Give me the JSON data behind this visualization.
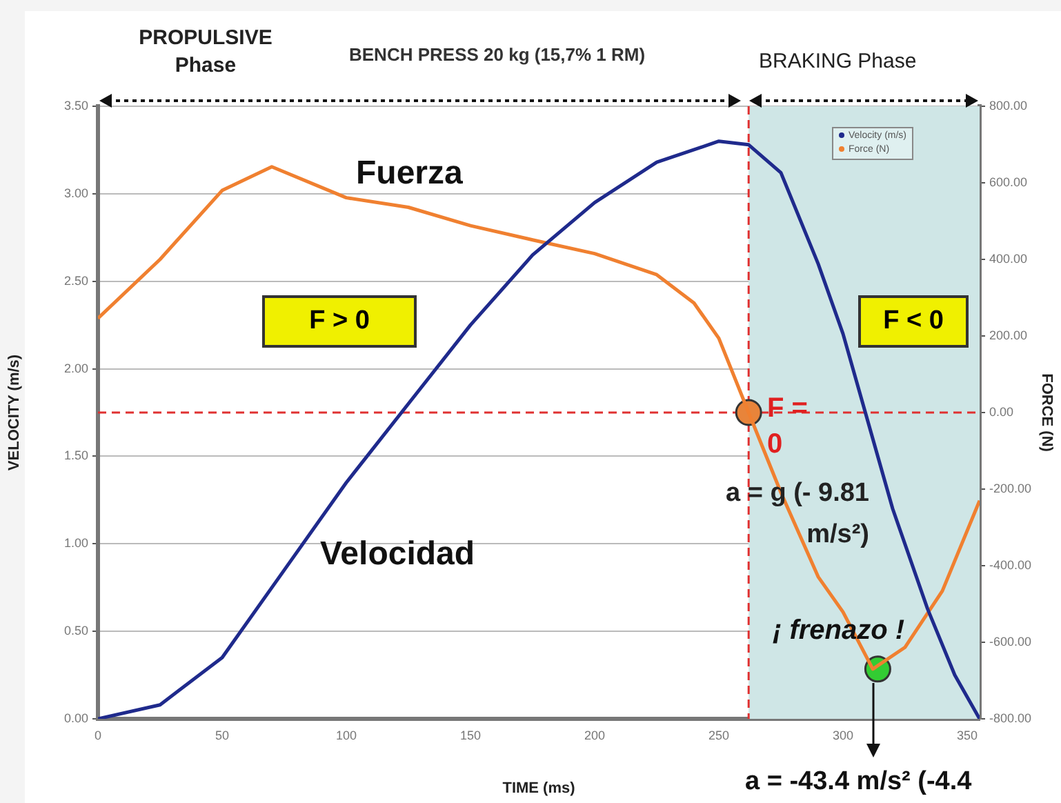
{
  "chart_data": {
    "type": "line",
    "title": "BENCH PRESS 20 kg (15,7% 1 RM)",
    "xlabel": "TIME (ms)",
    "ylabel": "VELOCITY (m/s)",
    "y2label": "FORCE (N)",
    "xlim": [
      0,
      355
    ],
    "xticks": [
      0,
      50,
      100,
      150,
      200,
      250,
      300,
      350
    ],
    "ylim": [
      0,
      3.5
    ],
    "yticks": [
      {
        "value": 0,
        "label": "0.00"
      },
      {
        "value": 0.5,
        "label": "0.50"
      },
      {
        "value": 1,
        "label": "1.00"
      },
      {
        "value": 1.5,
        "label": "1.50"
      },
      {
        "value": 2,
        "label": "2.00"
      },
      {
        "value": 2.5,
        "label": "2.50"
      },
      {
        "value": 3,
        "label": "3.00"
      },
      {
        "value": 3.5,
        "label": "3.50"
      }
    ],
    "y2lim": [
      -800,
      800
    ],
    "y2ticks": [
      {
        "value": -800,
        "label": "-800.00"
      },
      {
        "value": -600,
        "label": "-600.00"
      },
      {
        "value": -400,
        "label": "-400.00"
      },
      {
        "value": -200,
        "label": "-200.00"
      },
      {
        "value": 0,
        "label": "0.00"
      },
      {
        "value": 200,
        "label": "200.00"
      },
      {
        "value": 400,
        "label": "400.00"
      },
      {
        "value": 600,
        "label": "600.00"
      },
      {
        "value": 800,
        "label": "800.00"
      }
    ],
    "grid": "y",
    "legend": "top right",
    "series": [
      {
        "name": "Velocity (m/s)",
        "color": "#1f2a8c",
        "marker": "none",
        "x": [
          0,
          25,
          50,
          75,
          100,
          125,
          150,
          175,
          200,
          225,
          250,
          262,
          275,
          290,
          300,
          309,
          320,
          334,
          345,
          355
        ],
        "values": [
          0,
          0.08,
          0.35,
          0.85,
          1.35,
          1.8,
          2.25,
          2.65,
          2.95,
          3.18,
          3.3,
          3.28,
          3.12,
          2.6,
          2.2,
          1.75,
          1.2,
          0.63,
          0.25,
          0
        ]
      },
      {
        "name": "Force (N)",
        "color": "#f08030",
        "marker": "none",
        "axis": "y2",
        "x": [
          0,
          25,
          50,
          70,
          100,
          125,
          150,
          175,
          200,
          225,
          240,
          250,
          262,
          275,
          290,
          300,
          312,
          325,
          340,
          355
        ],
        "values": [
          246,
          400,
          580,
          642,
          561,
          536,
          488,
          451,
          415,
          360,
          286,
          194,
          0,
          -209,
          -429,
          -521,
          -670,
          -613,
          -466,
          -230
        ]
      },
      {
        "type": "scatter",
        "marker": "circle",
        "axis": "y2",
        "x": [
          262,
          314
        ],
        "values": [
          0,
          -670
        ],
        "colors": [
          "#e8843a",
          "#33cc33"
        ]
      }
    ],
    "ref_lines": [
      {
        "axis": "y2",
        "value": 0,
        "color": "#e03030",
        "line_style": "dashed"
      },
      {
        "axis": "x",
        "value": 262,
        "color": "#e03030",
        "line_style": "dashed"
      }
    ],
    "bands": [
      {
        "axis": "x",
        "from": 262,
        "to": 355,
        "color": "#cfe6e6"
      }
    ],
    "annotations": [
      "PROPULSIVE Phase",
      "BRAKING Phase",
      "Fuerza",
      "Velocidad",
      "F > 0",
      "F < 0",
      "F = 0",
      "a = g (- 9.81 m/s²)",
      "¡ frenazo !",
      "a = -43.4 m/s²  (-4.4"
    ]
  }
}
